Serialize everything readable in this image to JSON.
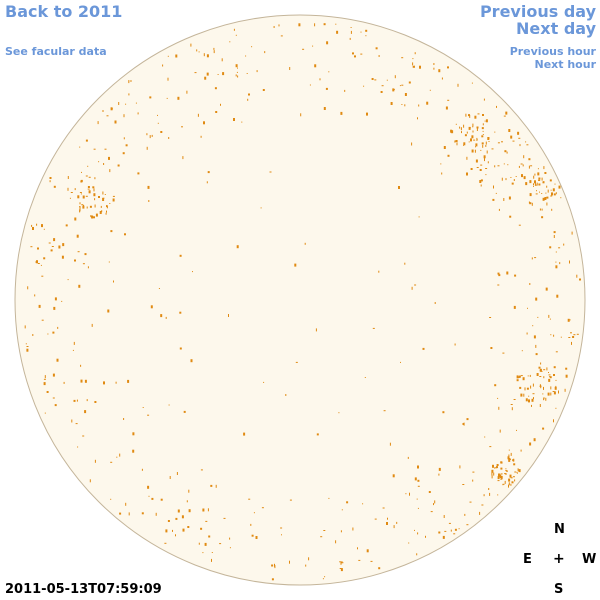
{
  "nav": {
    "back": "Back to 2011",
    "facular": "See facular data",
    "previous_day": "Previous day",
    "next_day": "Next day",
    "previous_hour": "Previous hour",
    "next_hour": "Next hour"
  },
  "timestamp": "2011-05-13T07:59:09",
  "compass": {
    "north": "N",
    "south": "S",
    "east": "E",
    "west": "W",
    "center": "+"
  },
  "colors": {
    "link": "#6b97d9",
    "disk_fill": "#fdf8ec",
    "disk_edge": "#c4b59a",
    "faculae": "#e08a12"
  }
}
